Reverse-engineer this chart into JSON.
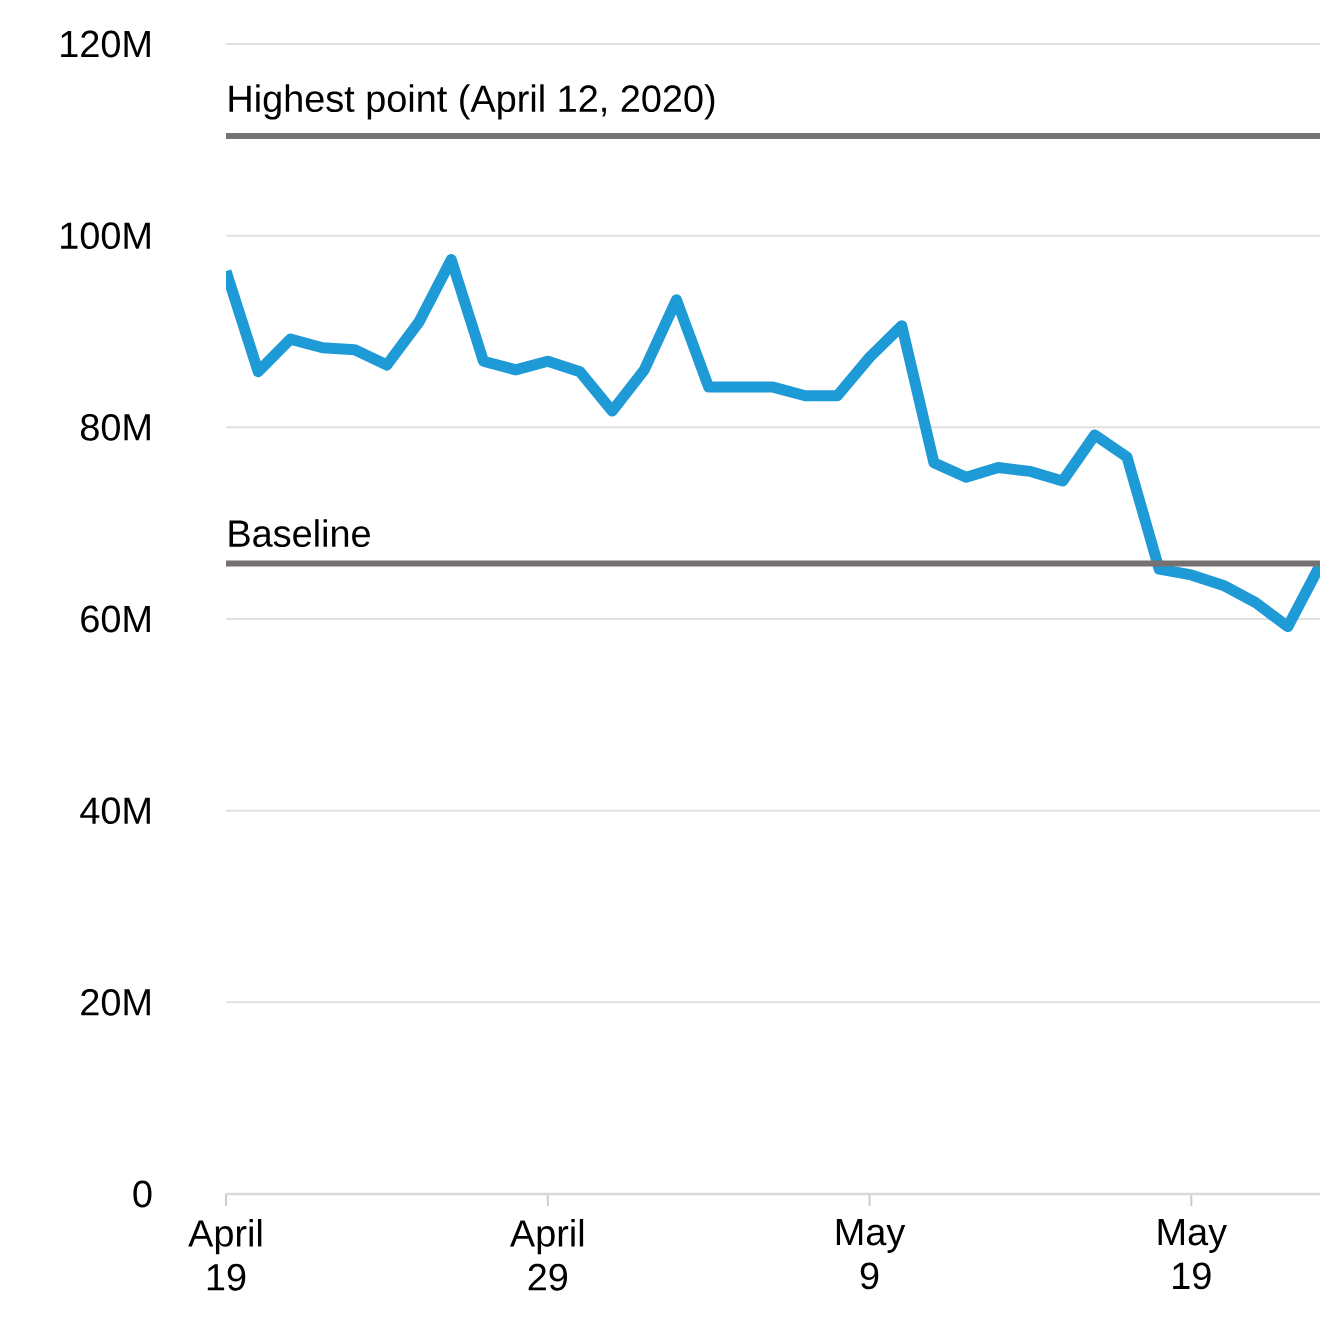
{
  "chart_data": {
    "type": "line",
    "x": [
      "2020-04-19",
      "2020-04-20",
      "2020-04-21",
      "2020-04-22",
      "2020-04-23",
      "2020-04-24",
      "2020-04-25",
      "2020-04-26",
      "2020-04-27",
      "2020-04-28",
      "2020-04-29",
      "2020-04-30",
      "2020-05-01",
      "2020-05-02",
      "2020-05-03",
      "2020-05-04",
      "2020-05-05",
      "2020-05-06",
      "2020-05-07",
      "2020-05-08",
      "2020-05-09",
      "2020-05-10",
      "2020-05-11",
      "2020-05-12",
      "2020-05-13",
      "2020-05-14",
      "2020-05-15",
      "2020-05-16",
      "2020-05-17",
      "2020-05-18",
      "2020-05-19",
      "2020-05-20",
      "2020-05-21",
      "2020-05-22",
      "2020-05-23"
    ],
    "series": [
      {
        "color": "#1e9ad6",
        "values": [
          96.3,
          85.8,
          89.2,
          88.3,
          88.1,
          86.5,
          91,
          97.5,
          86.9,
          86,
          86.9,
          85.8,
          81.7,
          86,
          93.3,
          84.2,
          84.2,
          84.2,
          83.3,
          83.3,
          87.3,
          90.6,
          76.3,
          74.8,
          75.8,
          75.4,
          74.4,
          79.2,
          76.9,
          65.2,
          64.6,
          63.5,
          61.7,
          59.2,
          65.6
        ]
      }
    ],
    "xlim": [
      "2020-04-19",
      "2020-05-23"
    ],
    "xticks": [
      {
        "value": "2020-04-19",
        "label": "April 19"
      },
      {
        "value": "2020-04-29",
        "label": "April 29"
      },
      {
        "value": "2020-05-09",
        "label": "May 9"
      },
      {
        "value": "2020-05-19",
        "label": "May 19"
      }
    ],
    "ylim": [
      0,
      120
    ],
    "yticks": [
      {
        "value": 0,
        "label": "0"
      },
      {
        "value": 20,
        "label": "20M"
      },
      {
        "value": 40,
        "label": "40M"
      },
      {
        "value": 60,
        "label": "60M"
      },
      {
        "value": 80,
        "label": "80M"
      },
      {
        "value": 100,
        "label": "100M"
      },
      {
        "value": 120,
        "label": "120M"
      }
    ],
    "grid": "y",
    "ref_lines": [
      {
        "axis": "y",
        "value": 110.4,
        "label": "Highest point (April 12, 2020)",
        "color": "#767171"
      },
      {
        "axis": "y",
        "value": 65.8,
        "label": "Baseline",
        "color": "#767171"
      }
    ]
  }
}
